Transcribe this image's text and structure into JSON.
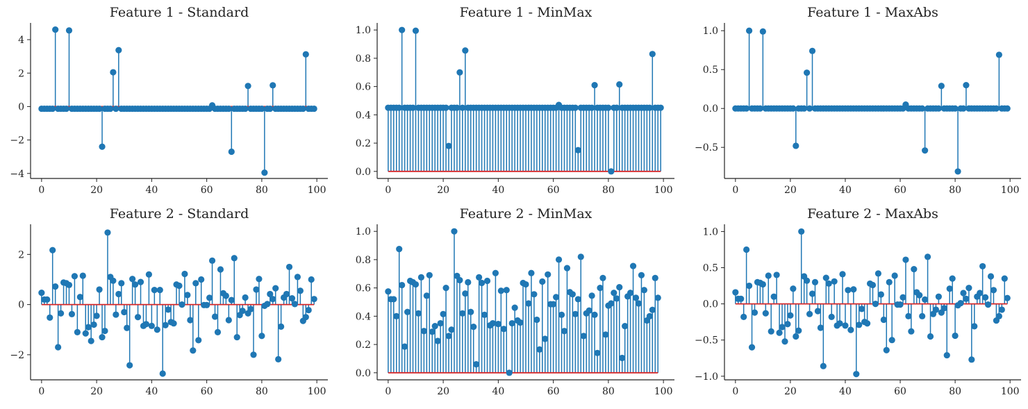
{
  "colors": {
    "stem": "#1f77b4",
    "marker": "#1f77b4",
    "baseline": "#d62728",
    "axis": "#222222"
  },
  "chart_data": [
    {
      "type": "stem",
      "title": "Feature 1 - Standard",
      "xlim": [
        -4,
        104
      ],
      "ylim": [
        -4.3,
        5.0
      ],
      "xticks": [
        0,
        20,
        40,
        60,
        80,
        100
      ],
      "yticks": [
        -4,
        -2,
        0,
        2,
        4
      ],
      "ytick_labels": [
        "−4",
        "−2",
        "0",
        "2",
        "4"
      ],
      "baseline": 0,
      "x_start": 0,
      "values": [
        -0.13,
        -0.13,
        -0.13,
        -0.13,
        -0.13,
        4.6,
        -0.13,
        -0.13,
        -0.13,
        -0.13,
        4.55,
        -0.13,
        -0.13,
        -0.13,
        -0.13,
        -0.13,
        -0.13,
        -0.13,
        -0.13,
        -0.13,
        -0.13,
        -0.13,
        -2.4,
        -0.13,
        -0.13,
        -0.13,
        2.05,
        -0.13,
        3.37,
        -0.13,
        -0.13,
        -0.13,
        -0.13,
        -0.13,
        -0.13,
        -0.13,
        -0.13,
        -0.13,
        -0.13,
        -0.13,
        -0.13,
        -0.13,
        -0.13,
        -0.13,
        -0.13,
        -0.13,
        -0.13,
        -0.13,
        -0.13,
        -0.13,
        -0.13,
        -0.13,
        -0.13,
        -0.13,
        -0.13,
        -0.13,
        -0.13,
        -0.13,
        -0.13,
        -0.13,
        -0.13,
        -0.13,
        0.07,
        -0.13,
        -0.13,
        -0.13,
        -0.13,
        -0.13,
        -0.13,
        -2.7,
        -0.13,
        -0.13,
        -0.13,
        -0.13,
        -0.13,
        1.23,
        -0.13,
        -0.13,
        -0.13,
        -0.13,
        -0.13,
        -3.95,
        -0.13,
        -0.13,
        1.27,
        -0.13,
        -0.13,
        -0.13,
        -0.13,
        -0.13,
        -0.13,
        -0.13,
        -0.13,
        -0.13,
        -0.13,
        -0.13,
        3.12,
        -0.13,
        -0.13,
        -0.13
      ]
    },
    {
      "type": "stem",
      "title": "Feature 1 - MinMax",
      "xlim": [
        -4,
        104
      ],
      "ylim": [
        -0.05,
        1.05
      ],
      "xticks": [
        0,
        20,
        40,
        60,
        80,
        100
      ],
      "yticks": [
        0.0,
        0.2,
        0.4,
        0.6,
        0.8,
        1.0
      ],
      "ytick_labels": [
        "0.0",
        "0.2",
        "0.4",
        "0.6",
        "0.8",
        "1.0"
      ],
      "baseline": 0,
      "x_start": 0,
      "values": [
        0.45,
        0.45,
        0.45,
        0.45,
        0.45,
        1.0,
        0.45,
        0.45,
        0.45,
        0.45,
        0.995,
        0.45,
        0.45,
        0.45,
        0.45,
        0.45,
        0.45,
        0.45,
        0.45,
        0.45,
        0.45,
        0.45,
        0.18,
        0.45,
        0.45,
        0.45,
        0.7,
        0.45,
        0.855,
        0.45,
        0.45,
        0.45,
        0.45,
        0.45,
        0.45,
        0.45,
        0.45,
        0.45,
        0.45,
        0.45,
        0.45,
        0.45,
        0.45,
        0.45,
        0.45,
        0.45,
        0.45,
        0.45,
        0.45,
        0.45,
        0.45,
        0.45,
        0.45,
        0.45,
        0.45,
        0.45,
        0.45,
        0.45,
        0.45,
        0.45,
        0.45,
        0.45,
        0.47,
        0.45,
        0.45,
        0.45,
        0.45,
        0.45,
        0.45,
        0.15,
        0.45,
        0.45,
        0.45,
        0.45,
        0.45,
        0.61,
        0.45,
        0.45,
        0.45,
        0.45,
        0.45,
        0.0,
        0.45,
        0.45,
        0.615,
        0.45,
        0.45,
        0.45,
        0.45,
        0.45,
        0.45,
        0.45,
        0.45,
        0.45,
        0.45,
        0.45,
        0.83,
        0.45,
        0.45,
        0.45
      ]
    },
    {
      "type": "stem",
      "title": "Feature 1 - MaxAbs",
      "xlim": [
        -4,
        104
      ],
      "ylim": [
        -0.9,
        1.1
      ],
      "xticks": [
        0,
        20,
        40,
        60,
        80,
        100
      ],
      "yticks": [
        -0.5,
        0.0,
        0.5,
        1.0
      ],
      "ytick_labels": [
        "−0.5",
        "0.0",
        "0.5",
        "1.0"
      ],
      "baseline": 0,
      "x_start": 0,
      "values": [
        0.0,
        0.0,
        0.0,
        0.0,
        0.0,
        1.0,
        0.0,
        0.0,
        0.0,
        0.0,
        0.99,
        0.0,
        0.0,
        0.0,
        0.0,
        0.0,
        0.0,
        0.0,
        0.0,
        0.0,
        0.0,
        0.0,
        -0.48,
        0.0,
        0.0,
        0.0,
        0.46,
        0.0,
        0.74,
        0.0,
        0.0,
        0.0,
        0.0,
        0.0,
        0.0,
        0.0,
        0.0,
        0.0,
        0.0,
        0.0,
        0.0,
        0.0,
        0.0,
        0.0,
        0.0,
        0.0,
        0.0,
        0.0,
        0.0,
        0.0,
        0.0,
        0.0,
        0.0,
        0.0,
        0.0,
        0.0,
        0.0,
        0.0,
        0.0,
        0.0,
        0.0,
        0.0,
        0.05,
        0.0,
        0.0,
        0.0,
        0.0,
        0.0,
        0.0,
        -0.54,
        0.0,
        0.0,
        0.0,
        0.0,
        0.0,
        0.29,
        0.0,
        0.0,
        0.0,
        0.0,
        0.0,
        -0.81,
        0.0,
        0.0,
        0.3,
        0.0,
        0.0,
        0.0,
        0.0,
        0.0,
        0.0,
        0.0,
        0.0,
        0.0,
        0.0,
        0.0,
        0.69,
        0.0,
        0.0,
        0.0
      ]
    },
    {
      "type": "stem",
      "title": "Feature 2 - Standard",
      "xlim": [
        -4,
        104
      ],
      "ylim": [
        -3.0,
        3.2
      ],
      "xticks": [
        0,
        20,
        40,
        60,
        80,
        100
      ],
      "yticks": [
        -2,
        0,
        2
      ],
      "ytick_labels": [
        "−2",
        "0",
        "2"
      ],
      "baseline": 0,
      "x_start": 0,
      "values": [
        0.47,
        0.2,
        0.2,
        -0.52,
        2.17,
        0.72,
        -1.7,
        -0.35,
        0.88,
        0.85,
        0.78,
        -0.38,
        1.13,
        -1.1,
        0.3,
        1.15,
        -1.15,
        -0.9,
        -1.45,
        -0.8,
        -0.45,
        0.6,
        -1.3,
        -1.05,
        2.87,
        1.1,
        0.95,
        -0.4,
        0.42,
        0.85,
        -0.3,
        -0.93,
        -2.42,
        1.02,
        0.8,
        -0.5,
        0.9,
        -0.85,
        -0.78,
        1.2,
        -0.85,
        0.58,
        -1.0,
        0.58,
        -2.75,
        -0.82,
        -0.2,
        -0.7,
        -0.75,
        0.8,
        0.75,
        0.0,
        1.22,
        0.38,
        -0.62,
        -1.83,
        0.85,
        -1.42,
        1.0,
        -0.02,
        -0.02,
        0.27,
        1.75,
        -0.48,
        -1.1,
        1.4,
        0.45,
        0.35,
        -0.62,
        0.18,
        1.85,
        -1.3,
        -0.42,
        -0.25,
        0.28,
        -0.35,
        -0.18,
        -2.0,
        0.6,
        1.02,
        -1.25,
        -0.05,
        0.02,
        0.42,
        0.22,
        0.65,
        -2.18,
        -0.88,
        0.28,
        0.42,
        1.5,
        0.25,
        0.02,
        1.1,
        0.55,
        -0.65,
        -0.5,
        -0.22,
        1.0,
        0.22
      ]
    },
    {
      "type": "stem",
      "title": "Feature 2 - MinMax",
      "xlim": [
        -4,
        104
      ],
      "ylim": [
        -0.05,
        1.05
      ],
      "xticks": [
        0,
        20,
        40,
        60,
        80,
        100
      ],
      "yticks": [
        0.0,
        0.2,
        0.4,
        0.6,
        0.8,
        1.0
      ],
      "ytick_labels": [
        "0.0",
        "0.2",
        "0.4",
        "0.6",
        "0.8",
        "1.0"
      ],
      "baseline": 0,
      "x_start": 0,
      "values": [
        0.575,
        0.52,
        0.52,
        0.4,
        0.875,
        0.62,
        0.185,
        0.43,
        0.65,
        0.64,
        0.625,
        0.42,
        0.675,
        0.295,
        0.545,
        0.69,
        0.29,
        0.33,
        0.225,
        0.35,
        0.415,
        0.6,
        0.26,
        0.305,
        1.0,
        0.685,
        0.655,
        0.42,
        0.56,
        0.64,
        0.43,
        0.325,
        0.06,
        0.675,
        0.635,
        0.41,
        0.65,
        0.335,
        0.35,
        0.705,
        0.345,
        0.58,
        0.31,
        0.585,
        0.0,
        0.35,
        0.46,
        0.37,
        0.355,
        0.635,
        0.625,
        0.49,
        0.705,
        0.555,
        0.375,
        0.165,
        0.645,
        0.24,
        0.695,
        0.485,
        0.485,
        0.535,
        0.8,
        0.41,
        0.295,
        0.74,
        0.57,
        0.555,
        0.415,
        0.52,
        0.82,
        0.26,
        0.42,
        0.44,
        0.545,
        0.41,
        0.14,
        0.6,
        0.67,
        0.27,
        0.475,
        0.49,
        0.565,
        0.525,
        0.605,
        0.105,
        0.33,
        0.54,
        0.565,
        0.755,
        0.53,
        0.49,
        0.69,
        0.585,
        0.37,
        0.4,
        0.445,
        0.67,
        0.53
      ]
    },
    {
      "type": "stem",
      "title": "Feature 2 - MaxAbs",
      "xlim": [
        -4,
        104
      ],
      "ylim": [
        -1.05,
        1.1
      ],
      "xticks": [
        0,
        20,
        40,
        60,
        80,
        100
      ],
      "yticks": [
        -1.0,
        -0.5,
        0.0,
        0.5,
        1.0
      ],
      "ytick_labels": [
        "−1.0",
        "−0.5",
        "0.0",
        "0.5",
        "1.0"
      ],
      "baseline": 0,
      "x_start": 0,
      "values": [
        0.16,
        0.07,
        0.07,
        -0.18,
        0.75,
        0.25,
        -0.6,
        -0.12,
        0.3,
        0.29,
        0.27,
        -0.13,
        0.39,
        -0.38,
        0.1,
        0.4,
        -0.4,
        -0.32,
        -0.52,
        -0.28,
        -0.16,
        0.21,
        -0.45,
        -0.37,
        1.0,
        0.38,
        0.32,
        -0.14,
        0.14,
        0.3,
        -0.1,
        -0.33,
        -0.86,
        0.36,
        0.28,
        -0.18,
        0.31,
        -0.3,
        -0.27,
        0.41,
        -0.3,
        0.19,
        -0.36,
        0.2,
        -0.97,
        -0.29,
        -0.07,
        -0.25,
        -0.27,
        0.28,
        0.26,
        0.0,
        0.42,
        0.13,
        -0.22,
        -0.64,
        0.3,
        -0.5,
        0.39,
        -0.01,
        -0.01,
        0.09,
        0.61,
        -0.17,
        -0.38,
        0.48,
        0.16,
        0.12,
        -0.17,
        0.06,
        0.65,
        -0.45,
        -0.14,
        -0.08,
        0.1,
        -0.12,
        -0.06,
        -0.71,
        0.21,
        0.35,
        -0.44,
        -0.02,
        0.01,
        0.15,
        0.07,
        0.22,
        -0.77,
        -0.31,
        0.1,
        0.15,
        0.52,
        0.09,
        -0.01,
        0.38,
        0.19,
        -0.23,
        -0.17,
        -0.08,
        0.35,
        0.08
      ]
    }
  ]
}
